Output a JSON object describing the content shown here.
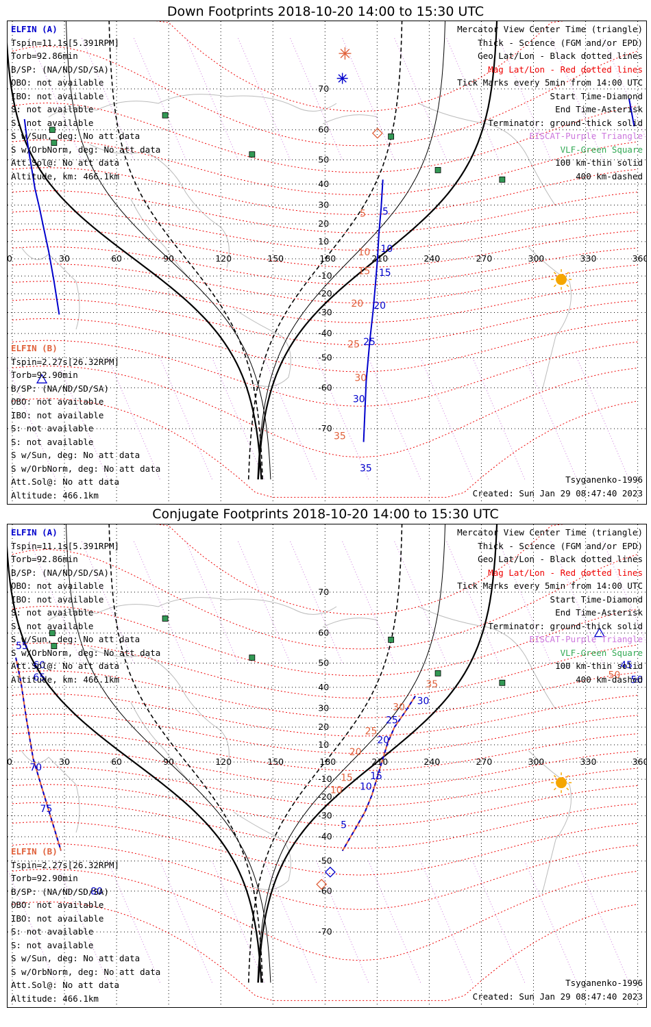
{
  "panels": [
    {
      "title": "Down Footprints 2018-10-20 14:00 to 15:30 UTC",
      "elfin_a": {
        "name": "ELFIN (A)",
        "tspin": "Tspin=11.1s[5.391RPM]",
        "torb": "Torb=92.86min",
        "bsp": "B/SP: (NA/ND/SD/SA)",
        "obo": "OBO: not available",
        "ibo": "IBO: not available",
        "s1": "S: not available",
        "s2": "S: not available",
        "s_sun": "S w/Sun, deg: No att data",
        "s_orb": "S w/OrbNorm, deg: No att data",
        "att": "Att.Sol@: No att data",
        "alt": "Altitude, km: 466.1km"
      },
      "elfin_b": {
        "name": "ELFIN (B)",
        "tspin": "Tspin=2.27s[26.32RPM]",
        "torb": "Torb=92.90min",
        "bsp": "B/SP: (NA/ND/SD/SA)",
        "obo": "OBO: not available",
        "ibo": "IBO: not available",
        "s1": "S: not available",
        "s2": "S: not available",
        "s_sun": "S w/Sun, deg: No att data",
        "s_orb": "S w/OrbNorm, deg: No att data",
        "att": "Att.Sol@: No att data",
        "alt": "Altitude: 466.1km"
      },
      "legend": {
        "l1": "Mercator View Center Time (triangle)",
        "l2": "Thick - Science (FGM and/or EPD)",
        "l3": "Geo Lat/Lon - Black dotted lines",
        "l4": "Mag Lat/Lon - Red dotted lines",
        "l5": "Tick Marks every 5min from 14:00 UTC",
        "l6": "Start Time-Diamond",
        "l7": "End Time-Asterisk",
        "l8": "Terminator: ground-thick solid",
        "l9": "EISCAT-Purple Triangle",
        "l10": "VLF-Green Square",
        "l11": "100 km-thin solid",
        "l12": "400 km-dashed"
      },
      "model": "Tsyganenko-1996",
      "created": "Created: Sun Jan 29 08:47:40 2023"
    },
    {
      "title": "Conjugate Footprints 2018-10-20 14:00 to 15:30 UTC",
      "elfin_a": {
        "name": "ELFIN (A)",
        "tspin": "Tspin=11.1s[5.391RPM]",
        "torb": "Torb=92.86min",
        "bsp": "B/SP: (NA/ND/SD/SA)",
        "obo": "OBO: not available",
        "ibo": "IBO: not available",
        "s1": "S: not available",
        "s2": "S: not available",
        "s_sun": "S w/Sun, deg: No att data",
        "s_orb": "S w/OrbNorm, deg: No att data",
        "att": "Att.Sol@: No att data",
        "alt": "Altitude, km: 466.1km"
      },
      "elfin_b": {
        "name": "ELFIN (B)",
        "tspin": "Tspin=2.27s[26.32RPM]",
        "torb": "Torb=92.90min",
        "bsp": "B/SP: (NA/ND/SD/SA)",
        "obo": "OBO: not available",
        "ibo": "IBO: not available",
        "s1": "S: not available",
        "s2": "S: not available",
        "s_sun": "S w/Sun, deg: No att data",
        "s_orb": "S w/OrbNorm, deg: No att data",
        "att": "Att.Sol@: No att data",
        "alt": "Altitude: 466.1km"
      },
      "legend": {
        "l1": "Mercator View Center Time (triangle)",
        "l2": "Thick - Science (FGM and/or EPD)",
        "l3": "Geo Lat/Lon - Black dotted lines",
        "l4": "Mag Lat/Lon - Red dotted lines",
        "l5": "Tick Marks every 5min from 14:00 UTC",
        "l6": "Start Time-Diamond",
        "l7": "End Time-Asterisk",
        "l8": "Terminator: ground-thick solid",
        "l9": "EISCAT-Purple Triangle",
        "l10": "VLF-Green Square",
        "l11": "100 km-thin solid",
        "l12": "400 km-dashed"
      },
      "model": "Tsyganenko-1996",
      "created": "Created: Sun Jan 29 08:47:40 2023"
    }
  ],
  "lon_ticks": [
    "0",
    "30",
    "60",
    "90",
    "120",
    "150",
    "180",
    "210",
    "240",
    "270",
    "300",
    "330",
    "360"
  ],
  "lat_ticks": [
    "70",
    "60",
    "50",
    "40",
    "30",
    "20",
    "10",
    "0",
    "-10",
    "-20",
    "-30",
    "-40",
    "-50",
    "-60",
    "-70"
  ],
  "colors": {
    "elfin_a": "#0000cc",
    "elfin_b": "#e0603a",
    "mag_grid": "#ee0000",
    "eiscat": "#cc77dd",
    "vlf": "#339955",
    "sun": "#f5a600"
  },
  "tracks": {
    "down": {
      "a": {
        "lon": [
          202.2,
          203.7,
          205.8,
          207.7,
          209.0,
          210.2,
          211.0,
          212.3,
          213.3
        ],
        "lat": [
          -72.5,
          -58.0,
          -43.0,
          -29.0,
          -15.0,
          0.0,
          14.5,
          28.5,
          42.0
        ],
        "labels": [
          {
            "lon": 196,
            "lat": -64,
            "text": "30"
          },
          {
            "lon": 202,
            "lat": -45,
            "text": "25"
          },
          {
            "lon": 208,
            "lat": -28,
            "text": "20"
          },
          {
            "lon": 211,
            "lat": -10,
            "text": "15"
          },
          {
            "lon": 212,
            "lat": 4,
            "text": "10"
          },
          {
            "lon": 213,
            "lat": 25,
            "text": "5"
          },
          {
            "lon": 200,
            "lat": -77,
            "text": "35"
          }
        ],
        "b_labels": [
          {
            "lon": 197,
            "lat": -58,
            "text": "30"
          },
          {
            "lon": 193,
            "lat": -46,
            "text": "25"
          },
          {
            "lon": 195,
            "lat": -27,
            "text": "20"
          },
          {
            "lon": 199,
            "lat": -9,
            "text": "15"
          },
          {
            "lon": 199,
            "lat": 2,
            "text": "10"
          },
          {
            "lon": 200,
            "lat": 24,
            "text": "5"
          },
          {
            "lon": 185,
            "lat": -72,
            "text": "35"
          }
        ],
        "wrap_lon": [
          7,
          8.5,
          10,
          11.5,
          13,
          15.5,
          18,
          21,
          24,
          27
        ],
        "wrap_lat": [
          63,
          57,
          51,
          45,
          38,
          29,
          18,
          4,
          -13,
          -31
        ]
      }
    },
    "conj": {
      "lon": [
        232.0,
        226.0,
        220.0,
        216.0,
        213.0,
        210.0,
        207.0,
        203.0,
        197.0,
        190.0
      ],
      "lat": [
        36.0,
        28.0,
        20.0,
        11.0,
        1.0,
        -9.0,
        -19.0,
        -28.0,
        -37.0,
        -46.0
      ]
    }
  }
}
